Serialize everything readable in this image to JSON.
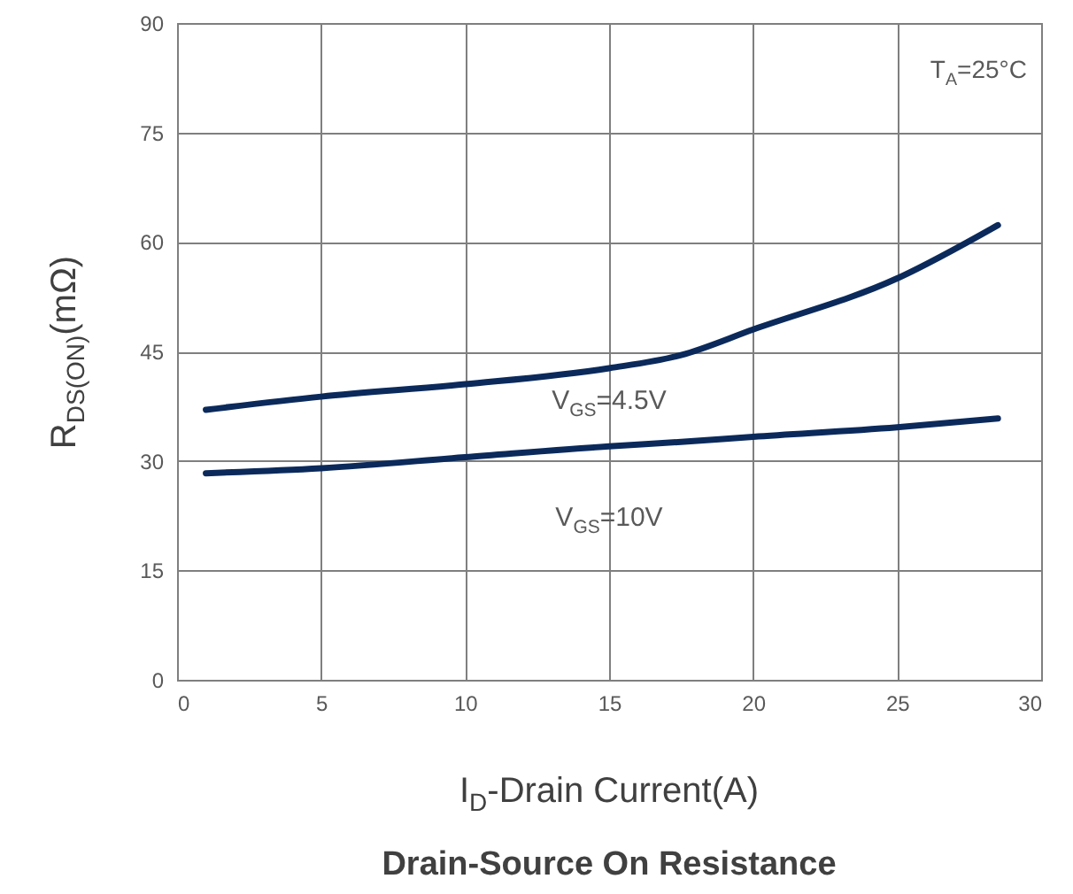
{
  "chart_data": {
    "type": "line",
    "title": "Drain-Source On Resistance",
    "xlabel": "I$_{D}$-Drain Current(A)",
    "ylabel": "R$_{DS(ON)}$(mΩ)",
    "annotations": [
      "T$_{A}$=25°C"
    ],
    "x": [
      1,
      5,
      10,
      15,
      17.5,
      20,
      25,
      28.5
    ],
    "series": [
      {
        "name": "V$_{GS}$=4.5V",
        "color": "#0b2a5b",
        "values": [
          37,
          38.8,
          40.5,
          42.7,
          44.5,
          48,
          55,
          62.3
        ]
      },
      {
        "name": "V$_{GS}$=10V",
        "color": "#0b2a5b",
        "values": [
          28.3,
          29,
          30.5,
          32,
          32.6,
          33.3,
          34.6,
          35.8
        ]
      }
    ],
    "xlim": [
      0,
      30
    ],
    "xticks": [
      0,
      5,
      10,
      15,
      20,
      25,
      30
    ],
    "ylim": [
      0,
      90
    ],
    "yticks": [
      0,
      15,
      30,
      45,
      60,
      75,
      90
    ],
    "grid": true,
    "legend": false,
    "marker": "none",
    "line_style": "solid"
  }
}
